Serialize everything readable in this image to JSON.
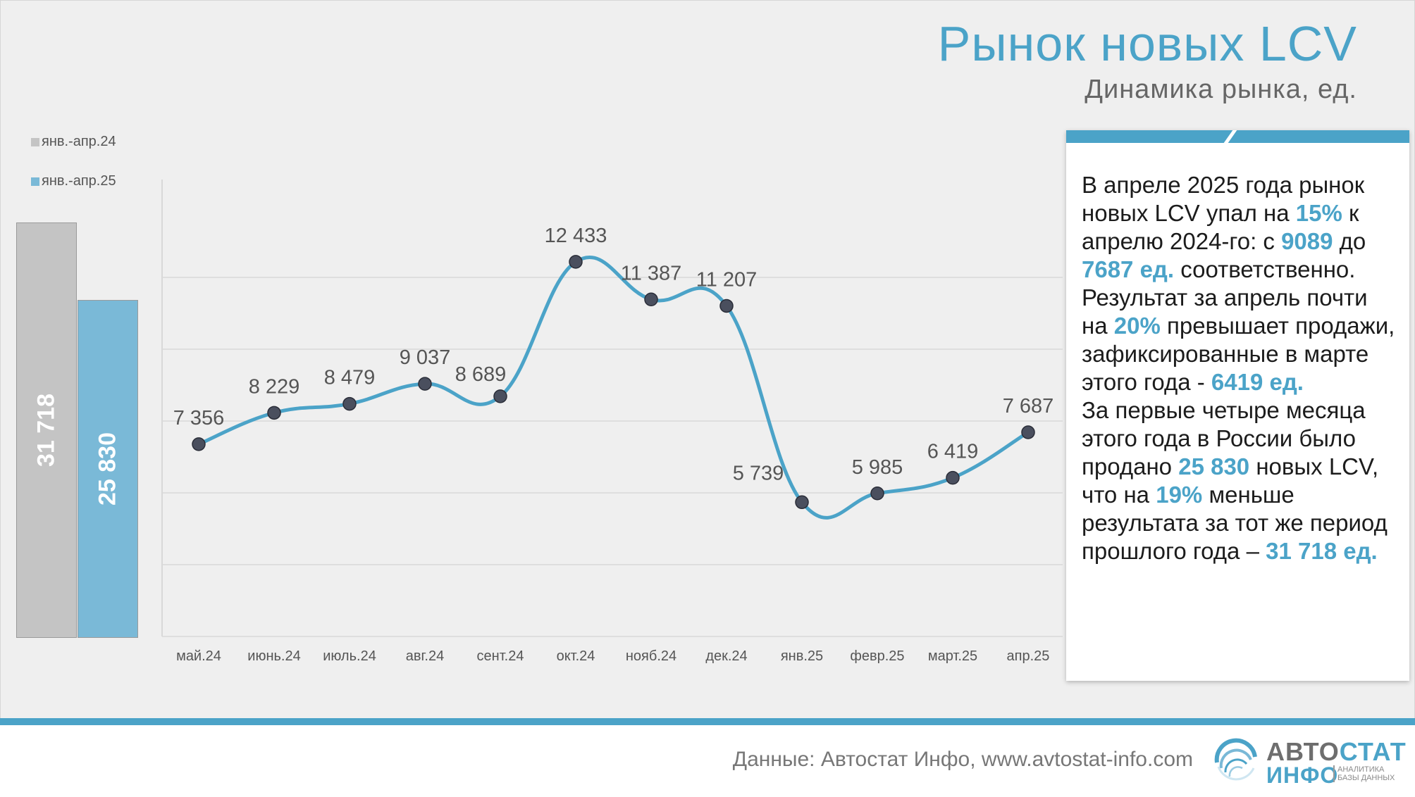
{
  "header": {
    "title": "Рынок новых LCV",
    "subtitle": "Динамика рынка, ед."
  },
  "colors": {
    "accent": "#4ba3c8",
    "bar_prev": "#c4c4c4",
    "bar_curr": "#7ab9d7",
    "line": "#4ba3c8",
    "marker": "#4a4f5e",
    "grid": "#d9d9d9"
  },
  "side_bars": {
    "legend": [
      {
        "label": "янв.-апр.24",
        "color": "#c4c4c4"
      },
      {
        "label": "янв.-апр.25",
        "color": "#7ab9d7"
      }
    ],
    "bars": [
      {
        "name": "янв.-апр.24",
        "value": 31718,
        "label": "31 718",
        "color": "#c4c4c4"
      },
      {
        "name": "янв.-апр.25",
        "value": 25830,
        "label": "25 830",
        "color": "#7ab9d7"
      }
    ]
  },
  "chart_data": {
    "type": "line",
    "title": "Динамика рынка, ед.",
    "smooth": true,
    "categories": [
      "май.24",
      "июнь.24",
      "июль.24",
      "авг.24",
      "сент.24",
      "окт.24",
      "нояб.24",
      "дек.24",
      "янв.25",
      "февр.25",
      "март.25",
      "апр.25"
    ],
    "values": [
      7356,
      8229,
      8479,
      9037,
      8689,
      12433,
      11387,
      11207,
      5739,
      5985,
      6419,
      7687
    ],
    "value_labels": [
      "7 356",
      "8 229",
      "8 479",
      "9 037",
      "8 689",
      "12 433",
      "11 387",
      "11 207",
      "5 739",
      "5 985",
      "6 419",
      "7 687"
    ],
    "ylim": [
      2000,
      14000
    ],
    "grid": true,
    "xlabel": "",
    "ylabel": ""
  },
  "info": {
    "paragraph1": [
      {
        "text": "В апреле 2025 года рынок новых LCV упал на ",
        "hl": false
      },
      {
        "text": "15%",
        "hl": true
      },
      {
        "text": " к апрелю 2024-го: с ",
        "hl": false
      },
      {
        "text": "9089",
        "hl": true
      },
      {
        "text": " до ",
        "hl": false
      },
      {
        "text": "7687 ед.",
        "hl": true
      },
      {
        "text": " соответственно. Результат за апрель почти на ",
        "hl": false
      },
      {
        "text": "20%",
        "hl": true
      },
      {
        "text": " превышает продажи, зафиксированные в марте этого года  - ",
        "hl": false
      },
      {
        "text": "6419 ед.",
        "hl": true
      }
    ],
    "paragraph2": [
      {
        "text": "За первые четыре месяца этого года в России было продано ",
        "hl": false
      },
      {
        "text": "25 830",
        "hl": true
      },
      {
        "text": " новых LCV, что на ",
        "hl": false
      },
      {
        "text": "19%",
        "hl": true
      },
      {
        "text": " меньше результата за тот же период прошлого года – ",
        "hl": false
      },
      {
        "text": "31 718 ед.",
        "hl": true
      }
    ]
  },
  "footer": {
    "source": "Данные: Автостат Инфо, www.avtostat-info.com",
    "logo_word1_a": "АВТО",
    "logo_word1_b": "СТАТ",
    "logo_word2": "ИНФО",
    "logo_tagline": "АНАЛИТИКА БАЗЫ ДАННЫХ"
  }
}
